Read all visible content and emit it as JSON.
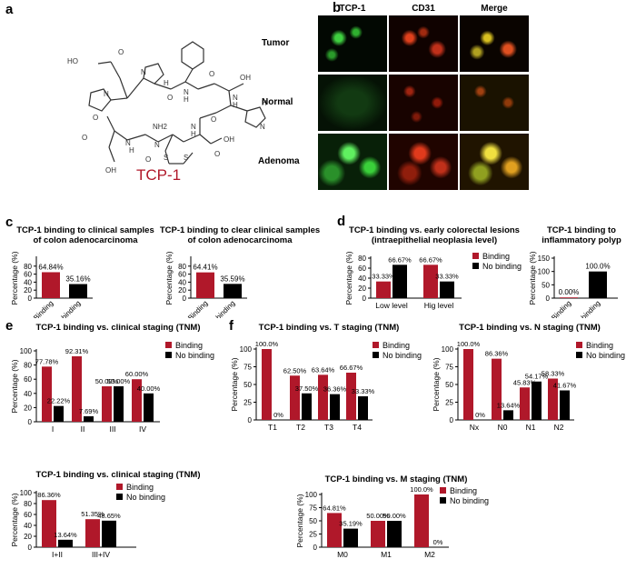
{
  "panels": {
    "a": "a",
    "b": "b",
    "c": "c",
    "d": "d",
    "e": "e",
    "f": "f"
  },
  "molecule": {
    "name": "TCP-1",
    "atoms": [
      "HO",
      "O",
      "N",
      "H",
      "O",
      "N",
      "H",
      "O",
      "OH",
      "O",
      "N",
      "N",
      "H",
      "O",
      "NH2",
      "H",
      "N",
      "N",
      "H",
      "N",
      "O",
      "S",
      "S",
      "O",
      "OH",
      "OH",
      "O",
      "N",
      "H"
    ]
  },
  "microscopy": {
    "columns": [
      "TCP-1",
      "CD31",
      "Merge"
    ],
    "rows": [
      "Tumor",
      "Normal",
      "Adenoma"
    ]
  },
  "colors": {
    "binding": "#b0182a",
    "no_binding": "#000000",
    "green": "#2fd02f",
    "red": "#e0301c",
    "merge": "#d8c020"
  },
  "legend": {
    "binding": "Binding",
    "no_binding": "No binding"
  },
  "chart_data": [
    {
      "id": "c1",
      "type": "bar",
      "title": "TCP-1 binding to clinical samples\nof colon adenocarcinoma",
      "ylabel": "Percentage (%)",
      "ylim": [
        0,
        100
      ],
      "yticks": [
        0,
        20,
        40,
        60,
        80
      ],
      "categories": [
        "Binding",
        "No binding"
      ],
      "rotated": true,
      "single": true,
      "values": [
        64.84,
        35.16
      ],
      "labels": [
        "64.84%",
        "35.16%"
      ]
    },
    {
      "id": "c2",
      "type": "bar",
      "title": "TCP-1 binding to clear clinical samples\nof colon adenocarcinoma",
      "ylabel": "Percentage (%)",
      "ylim": [
        0,
        100
      ],
      "yticks": [
        0,
        20,
        40,
        60,
        80
      ],
      "categories": [
        "Binding",
        "No binding"
      ],
      "rotated": true,
      "single": true,
      "values": [
        64.41,
        35.59
      ],
      "labels": [
        "64.41%",
        "35.59%"
      ]
    },
    {
      "id": "d1",
      "type": "bar",
      "title": "TCP-1 binding vs. early colorectal lesions\n(intraepithelial neoplasia level)",
      "ylabel": "Percentage (%)",
      "ylim": [
        0,
        80
      ],
      "yticks": [
        0,
        20,
        40,
        60,
        80
      ],
      "categories": [
        "Low level",
        "Hig level"
      ],
      "rotated": false,
      "series": [
        {
          "name": "Binding",
          "values": [
            33.33,
            66.67
          ],
          "labels": [
            "33.33%",
            "66.67%"
          ]
        },
        {
          "name": "No binding",
          "values": [
            66.67,
            33.33
          ],
          "labels": [
            "66.67%",
            "33.33%"
          ]
        }
      ]
    },
    {
      "id": "d2",
      "type": "bar",
      "title": "TCP-1 binding to\ninflammatory polyp",
      "ylabel": "Percentage (%)",
      "ylim": [
        0,
        150
      ],
      "yticks": [
        0,
        50,
        100,
        150
      ],
      "categories": [
        "Binding",
        "No binding"
      ],
      "rotated": true,
      "single": true,
      "values": [
        0,
        100
      ],
      "labels": [
        "0.00%",
        "100.0%"
      ]
    },
    {
      "id": "e1",
      "type": "bar",
      "title": "TCP-1 binding vs. clinical staging (TNM)",
      "ylabel": "Percentage (%)",
      "ylim": [
        0,
        100
      ],
      "yticks": [
        0,
        20,
        40,
        60,
        80,
        100
      ],
      "categories": [
        "I",
        "II",
        "III",
        "IV"
      ],
      "rotated": false,
      "series": [
        {
          "name": "Binding",
          "values": [
            77.78,
            92.31,
            50.0,
            60.0
          ],
          "labels": [
            "77.78%",
            "92.31%",
            "50.00%",
            "60.00%"
          ]
        },
        {
          "name": "No binding",
          "values": [
            22.22,
            7.69,
            50.0,
            40.0
          ],
          "labels": [
            "22.22%",
            "7.69%",
            "50.00%",
            "40.00%"
          ]
        }
      ]
    },
    {
      "id": "f1",
      "type": "bar",
      "title": "TCP-1 binding vs. T staging (TNM)",
      "ylabel": "Percentage (%)",
      "ylim": [
        0,
        100
      ],
      "yticks": [
        0,
        25,
        50,
        75,
        100
      ],
      "categories": [
        "T1",
        "T2",
        "T3",
        "T4"
      ],
      "rotated": false,
      "series": [
        {
          "name": "Binding",
          "values": [
            100.0,
            62.5,
            63.64,
            66.67
          ],
          "labels": [
            "100.0%",
            "62.50%",
            "63.64%",
            "66.67%"
          ]
        },
        {
          "name": "No binding",
          "values": [
            0,
            37.5,
            36.36,
            33.33
          ],
          "labels": [
            "0%",
            "37.50%",
            "36.36%",
            "33.33%"
          ]
        }
      ]
    },
    {
      "id": "f2",
      "type": "bar",
      "title": "TCP-1 binding vs. N staging (TNM)",
      "ylabel": "Percentage (%)",
      "ylim": [
        0,
        100
      ],
      "yticks": [
        0,
        25,
        50,
        75,
        100
      ],
      "categories": [
        "Nx",
        "N0",
        "N1",
        "N2"
      ],
      "rotated": false,
      "series": [
        {
          "name": "Binding",
          "values": [
            100.0,
            86.36,
            45.83,
            58.33
          ],
          "labels": [
            "100.0%",
            "86.36%",
            "45.83%",
            "58.33%"
          ]
        },
        {
          "name": "No binding",
          "values": [
            0,
            13.64,
            54.17,
            41.67
          ],
          "labels": [
            "0%",
            "13.64%",
            "54.17%",
            "41.67%"
          ]
        }
      ]
    },
    {
      "id": "e2",
      "type": "bar",
      "title": "TCP-1 binding vs. clinical staging (TNM)",
      "ylabel": "Percentage (%)",
      "ylim": [
        0,
        100
      ],
      "yticks": [
        0,
        20,
        40,
        60,
        80,
        100
      ],
      "categories": [
        "I+II",
        "III+IV"
      ],
      "rotated": false,
      "series": [
        {
          "name": "Binding",
          "values": [
            86.36,
            51.35
          ],
          "labels": [
            "86.36%",
            "51.35%"
          ]
        },
        {
          "name": "No binding",
          "values": [
            13.64,
            48.65
          ],
          "labels": [
            "13.64%",
            "48.65%"
          ]
        }
      ]
    },
    {
      "id": "f3",
      "type": "bar",
      "title": "TCP-1 binding vs. M staging (TNM)",
      "ylabel": "Percentage (%)",
      "ylim": [
        0,
        100
      ],
      "yticks": [
        0,
        25,
        50,
        75,
        100
      ],
      "categories": [
        "M0",
        "M1",
        "M2"
      ],
      "rotated": false,
      "series": [
        {
          "name": "Binding",
          "values": [
            64.81,
            50.0,
            100.0
          ],
          "labels": [
            "64.81%",
            "50.00%",
            "100.0%"
          ]
        },
        {
          "name": "No binding",
          "values": [
            35.19,
            50.0,
            0
          ],
          "labels": [
            "35.19%",
            "50.00%",
            "0%"
          ]
        }
      ]
    }
  ]
}
